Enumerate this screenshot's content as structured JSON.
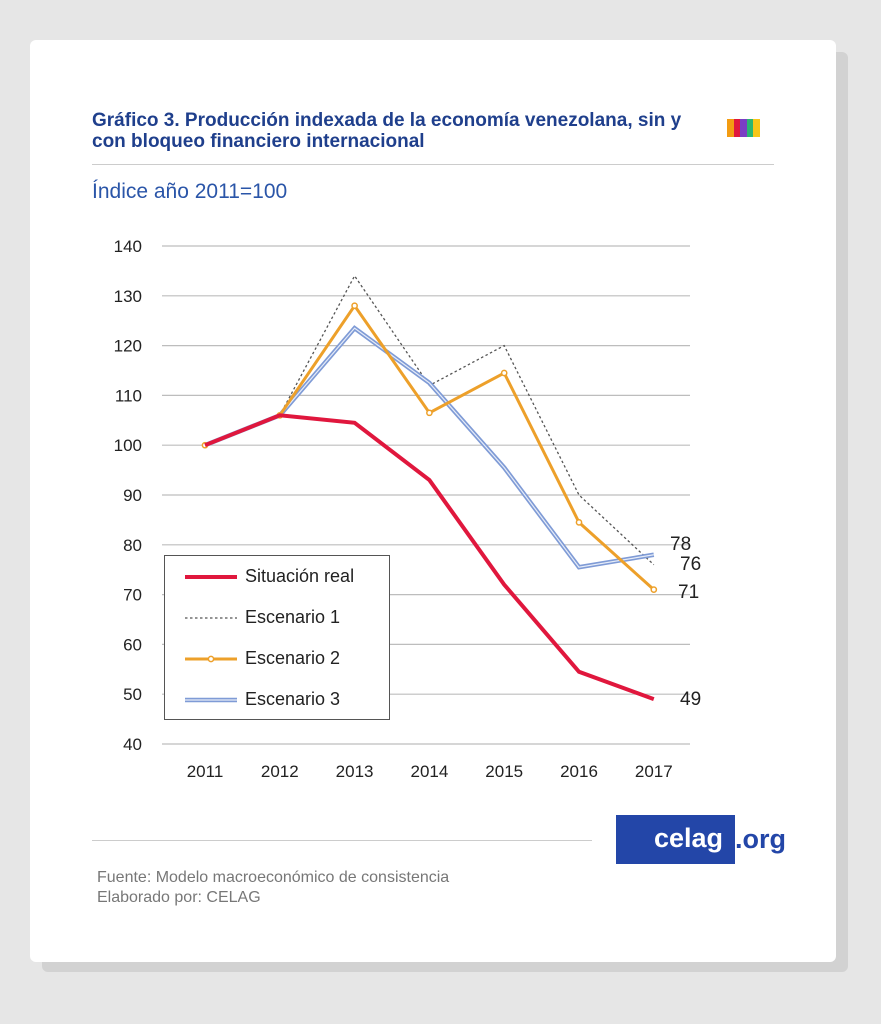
{
  "header": {
    "title": "Gráfico 3. Producción indexada de la economía venezolana, sin y con bloqueo financiero internacional",
    "subtitle": "Índice año 2011=100",
    "stripe_colors": [
      "#f39c12",
      "#e0173d",
      "#7b3fc4",
      "#2bb673",
      "#f6c619"
    ]
  },
  "chart_data": {
    "type": "line",
    "title": "Gráfico 3. Producción indexada de la economía venezolana, sin y con bloqueo financiero internacional",
    "ylabel": "Índice año 2011=100",
    "categories": [
      "2011",
      "2012",
      "2013",
      "2014",
      "2015",
      "2016",
      "2017"
    ],
    "ylim": [
      40,
      140
    ],
    "yticks": [
      "140",
      "130",
      "120",
      "110",
      "100",
      "90",
      "80",
      "70",
      "60",
      "50",
      "40"
    ],
    "grid": true,
    "legend_placement": "bottom-left",
    "series": [
      {
        "name": "Situación real",
        "values": [
          100,
          106,
          104.5,
          93,
          72,
          54.5,
          49
        ],
        "color": "#e0173d",
        "style": "solid-thick",
        "end_label": "49"
      },
      {
        "name": "Escenario 1",
        "values": [
          100,
          106,
          134,
          112,
          120,
          90,
          76
        ],
        "color": "#555555",
        "style": "dotted",
        "end_label": "76"
      },
      {
        "name": "Escenario 2",
        "values": [
          100,
          106,
          128,
          106.5,
          114.5,
          84.5,
          71
        ],
        "color": "#eda02a",
        "style": "solid-markers",
        "end_label": "71"
      },
      {
        "name": "Escenario 3",
        "values": [
          100,
          106,
          123.5,
          112.5,
          95.5,
          75.5,
          78
        ],
        "color": "#7f9bd6",
        "style": "double",
        "end_label": "78"
      }
    ]
  },
  "footer": {
    "logo_main": "celag",
    "logo_suffix": ".org",
    "source": "Fuente: Modelo macroeconómico de consistencia",
    "author": "Elaborado por: CELAG"
  }
}
